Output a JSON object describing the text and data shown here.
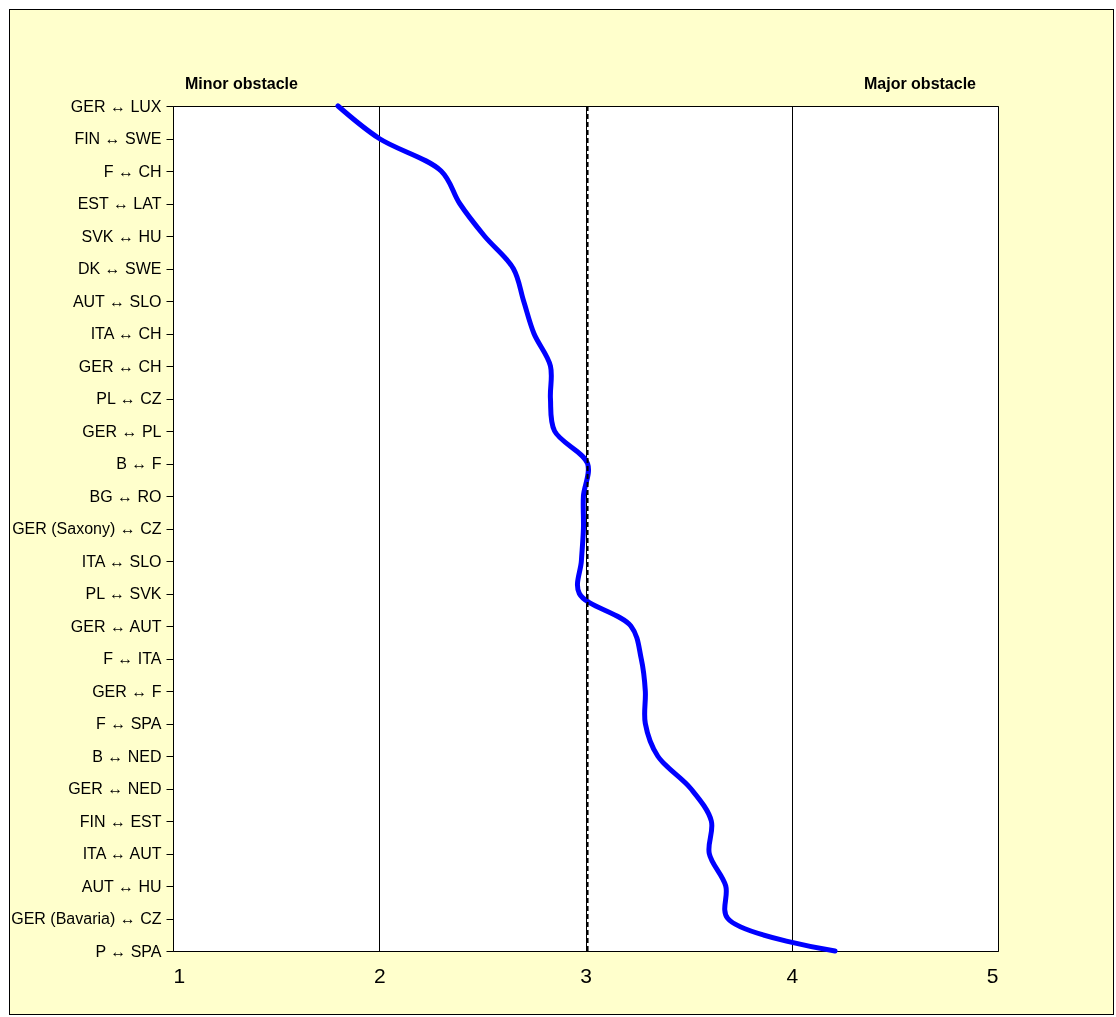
{
  "chart_data": {
    "type": "line",
    "orientation": "horizontal",
    "categories": [
      "GER ↔ LUX",
      "FIN ↔ SWE",
      "F ↔ CH",
      "EST ↔ LAT",
      "SVK ↔ HU",
      "DK ↔ SWE",
      "AUT ↔ SLO",
      "ITA ↔ CH",
      "GER ↔ CH",
      "PL ↔ CZ",
      "GER ↔ PL",
      "B ↔ F",
      "BG ↔ RO",
      "GER (Saxony) ↔ CZ",
      "ITA ↔ SLO",
      "PL ↔ SVK",
      "GER ↔ AUT",
      "F ↔ ITA",
      "GER ↔ F",
      "F ↔ SPA",
      "B ↔ NED",
      "GER ↔ NED",
      "FIN ↔ EST",
      "ITA ↔ AUT",
      "AUT ↔ HU",
      "GER (Bavaria) ↔ CZ",
      "P ↔ SPA"
    ],
    "series": [
      {
        "color": "#0000ff",
        "values": [
          1.8,
          2.0,
          2.3,
          2.39,
          2.51,
          2.65,
          2.7,
          2.75,
          2.83,
          2.83,
          2.85,
          3.01,
          2.99,
          2.99,
          2.98,
          2.97,
          3.22,
          3.27,
          3.29,
          3.29,
          3.35,
          3.51,
          3.61,
          3.6,
          3.68,
          3.69,
          4.21
        ]
      }
    ],
    "xlim": [
      1,
      5
    ],
    "xticks": [
      1,
      2,
      3,
      4,
      5
    ],
    "grid": "x",
    "marker": "none",
    "line_style": "solid",
    "ref_lines": [
      {
        "axis": "x",
        "value": 3.01,
        "color": "#000000",
        "line_style": "dashed"
      }
    ],
    "annotations": [
      "Minor obstacle",
      "Major obstacle"
    ]
  }
}
